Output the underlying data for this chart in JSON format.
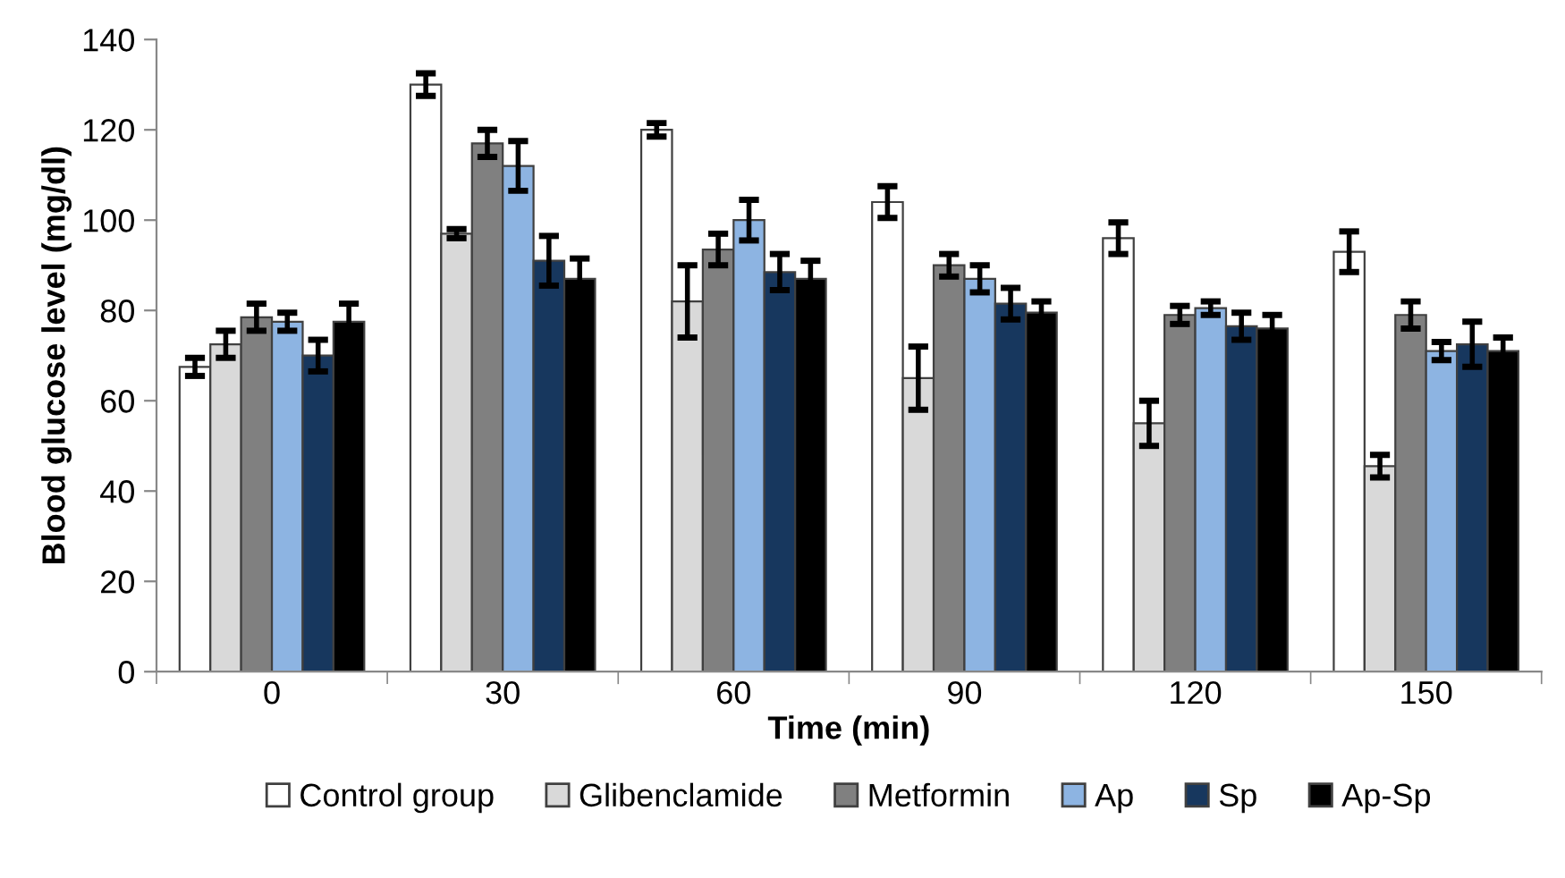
{
  "chart_data": {
    "type": "bar",
    "xlabel": "Time (min)",
    "ylabel": "Blood glucose level (mg/dl)",
    "categories": [
      "0",
      "30",
      "60",
      "90",
      "120",
      "150"
    ],
    "series": [
      {
        "name": "Control group",
        "color": "#ffffff",
        "values": [
          67.5,
          130,
          120,
          104,
          96,
          93
        ],
        "errors": [
          2,
          2.5,
          1.5,
          3.5,
          3.5,
          4.5
        ]
      },
      {
        "name": "Glibenclamide",
        "color": "#d9d9d9",
        "values": [
          72.5,
          97,
          82,
          65,
          55,
          45.5
        ],
        "errors": [
          3,
          1,
          8,
          7,
          5,
          2.5
        ]
      },
      {
        "name": "Metformin",
        "color": "#808080",
        "values": [
          78.5,
          117,
          93.5,
          90,
          79,
          79
        ],
        "errors": [
          3,
          3,
          3.5,
          2.5,
          2,
          3
        ]
      },
      {
        "name": "Ap",
        "color": "#8db4e2",
        "values": [
          77.5,
          112,
          100,
          87,
          80.5,
          71
        ],
        "errors": [
          2,
          5.5,
          4.5,
          3,
          1.5,
          2
        ]
      },
      {
        "name": "Sp",
        "color": "#17375e",
        "values": [
          70,
          91,
          88.5,
          81.5,
          76.5,
          72.5
        ],
        "errors": [
          3.5,
          5.5,
          4,
          3.5,
          3,
          5
        ]
      },
      {
        "name": "Ap-Sp",
        "color": "#000000",
        "values": [
          77.5,
          87,
          87,
          79.5,
          76,
          71
        ],
        "errors": [
          4,
          4.5,
          4,
          2.5,
          3,
          3
        ]
      }
    ],
    "ylim": [
      0,
      140
    ],
    "yticks": [
      0,
      20,
      40,
      60,
      80,
      100,
      120,
      140
    ],
    "grid": false,
    "legend": "bottom"
  }
}
